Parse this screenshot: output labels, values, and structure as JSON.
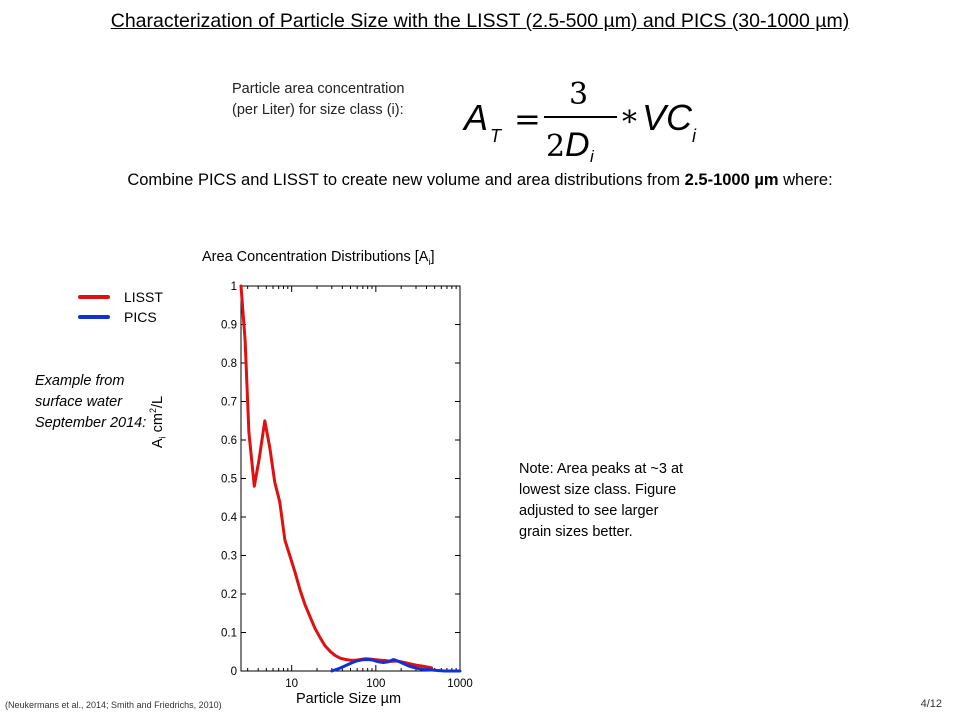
{
  "slide": {
    "title": "Characterization of Particle Size  with the LISST (2.5-500 µm) and PICS (30-1000 µm)",
    "equation_label_line1": "Particle area concentration",
    "equation_label_line2": "(per Liter) for size class (i):",
    "combine_prefix": "Combine PICS and LISST to create new volume and area distributions  from ",
    "combine_bold": "2.5-1000 µm",
    "combine_suffix": " where:",
    "example_line1": "Example from",
    "example_line2": "surface water",
    "example_line3": "September 2014:",
    "note_line1": "Note: Area peaks at ~3 at",
    "note_line2": "lowest size class. Figure",
    "note_line3": "adjusted to see larger",
    "note_line4": "grain sizes better.",
    "references": "(Neukermans et al., 2014; Smith and Friedrichs, 2010)",
    "page_number": "4/12"
  },
  "formula": {
    "lhs": "A",
    "lhs_sub": "T",
    "numerator": "3",
    "denominator_coef": "2",
    "denominator_var": "D",
    "denominator_sub": "i",
    "operator": "*",
    "rhs": "VC",
    "rhs_sub": "i"
  },
  "chart_data": {
    "type": "line",
    "title_main": "Area Concentration Distributions [A",
    "title_sub": "i",
    "title_end": "]",
    "xlabel": "Particle Size µm",
    "ylabel_main": "A",
    "ylabel_sub": "i",
    "ylabel_unit": " cm",
    "ylabel_sup": "2",
    "ylabel_end": "/L",
    "x_scale": "log",
    "xlim": [
      2.5,
      1000
    ],
    "ylim": [
      0,
      1
    ],
    "x_ticks": [
      10,
      100,
      1000
    ],
    "x_tick_labels": [
      "10",
      "100",
      "1000"
    ],
    "y_ticks": [
      0,
      0.1,
      0.2,
      0.3,
      0.4,
      0.5,
      0.6,
      0.7,
      0.8,
      0.9,
      1
    ],
    "y_tick_labels": [
      "0",
      "0.1",
      "0.2",
      "0.3",
      "0.4",
      "0.5",
      "0.6",
      "0.7",
      "0.8",
      "0.9",
      "1"
    ],
    "grid": false,
    "legend_position": "left",
    "series": [
      {
        "name": "LISST",
        "color": "#e01010",
        "x": [
          2.5,
          2.8,
          3.1,
          3.6,
          4.1,
          4.8,
          5.5,
          6.3,
          7.2,
          8.3,
          9.5,
          11,
          12.6,
          14.5,
          16.6,
          19,
          22,
          25,
          29,
          33,
          38,
          44,
          50,
          58,
          66,
          76,
          87,
          100,
          115,
          132,
          152,
          174,
          200,
          230,
          264,
          303,
          350,
          400,
          460
        ],
        "y": [
          1.0,
          0.86,
          0.62,
          0.48,
          0.55,
          0.65,
          0.58,
          0.49,
          0.44,
          0.34,
          0.3,
          0.255,
          0.21,
          0.17,
          0.14,
          0.11,
          0.085,
          0.065,
          0.05,
          0.04,
          0.033,
          0.03,
          0.028,
          0.028,
          0.03,
          0.032,
          0.031,
          0.029,
          0.028,
          0.027,
          0.025,
          0.026,
          0.024,
          0.021,
          0.018,
          0.015,
          0.013,
          0.011,
          0.008
        ]
      },
      {
        "name": "PICS",
        "color": "#1030d8",
        "x": [
          30,
          35,
          40,
          46,
          53,
          61,
          70,
          81,
          93,
          107,
          123,
          141,
          162,
          187,
          215,
          247,
          284,
          327,
          376,
          432,
          500,
          570,
          650,
          750,
          860,
          1000
        ],
        "y": [
          0.0,
          0.005,
          0.01,
          0.016,
          0.022,
          0.027,
          0.029,
          0.03,
          0.028,
          0.024,
          0.022,
          0.024,
          0.03,
          0.025,
          0.019,
          0.013,
          0.009,
          0.006,
          0.004,
          0.003,
          0.002,
          0.001,
          0.0,
          0.0,
          0.0,
          0.0
        ]
      }
    ]
  }
}
